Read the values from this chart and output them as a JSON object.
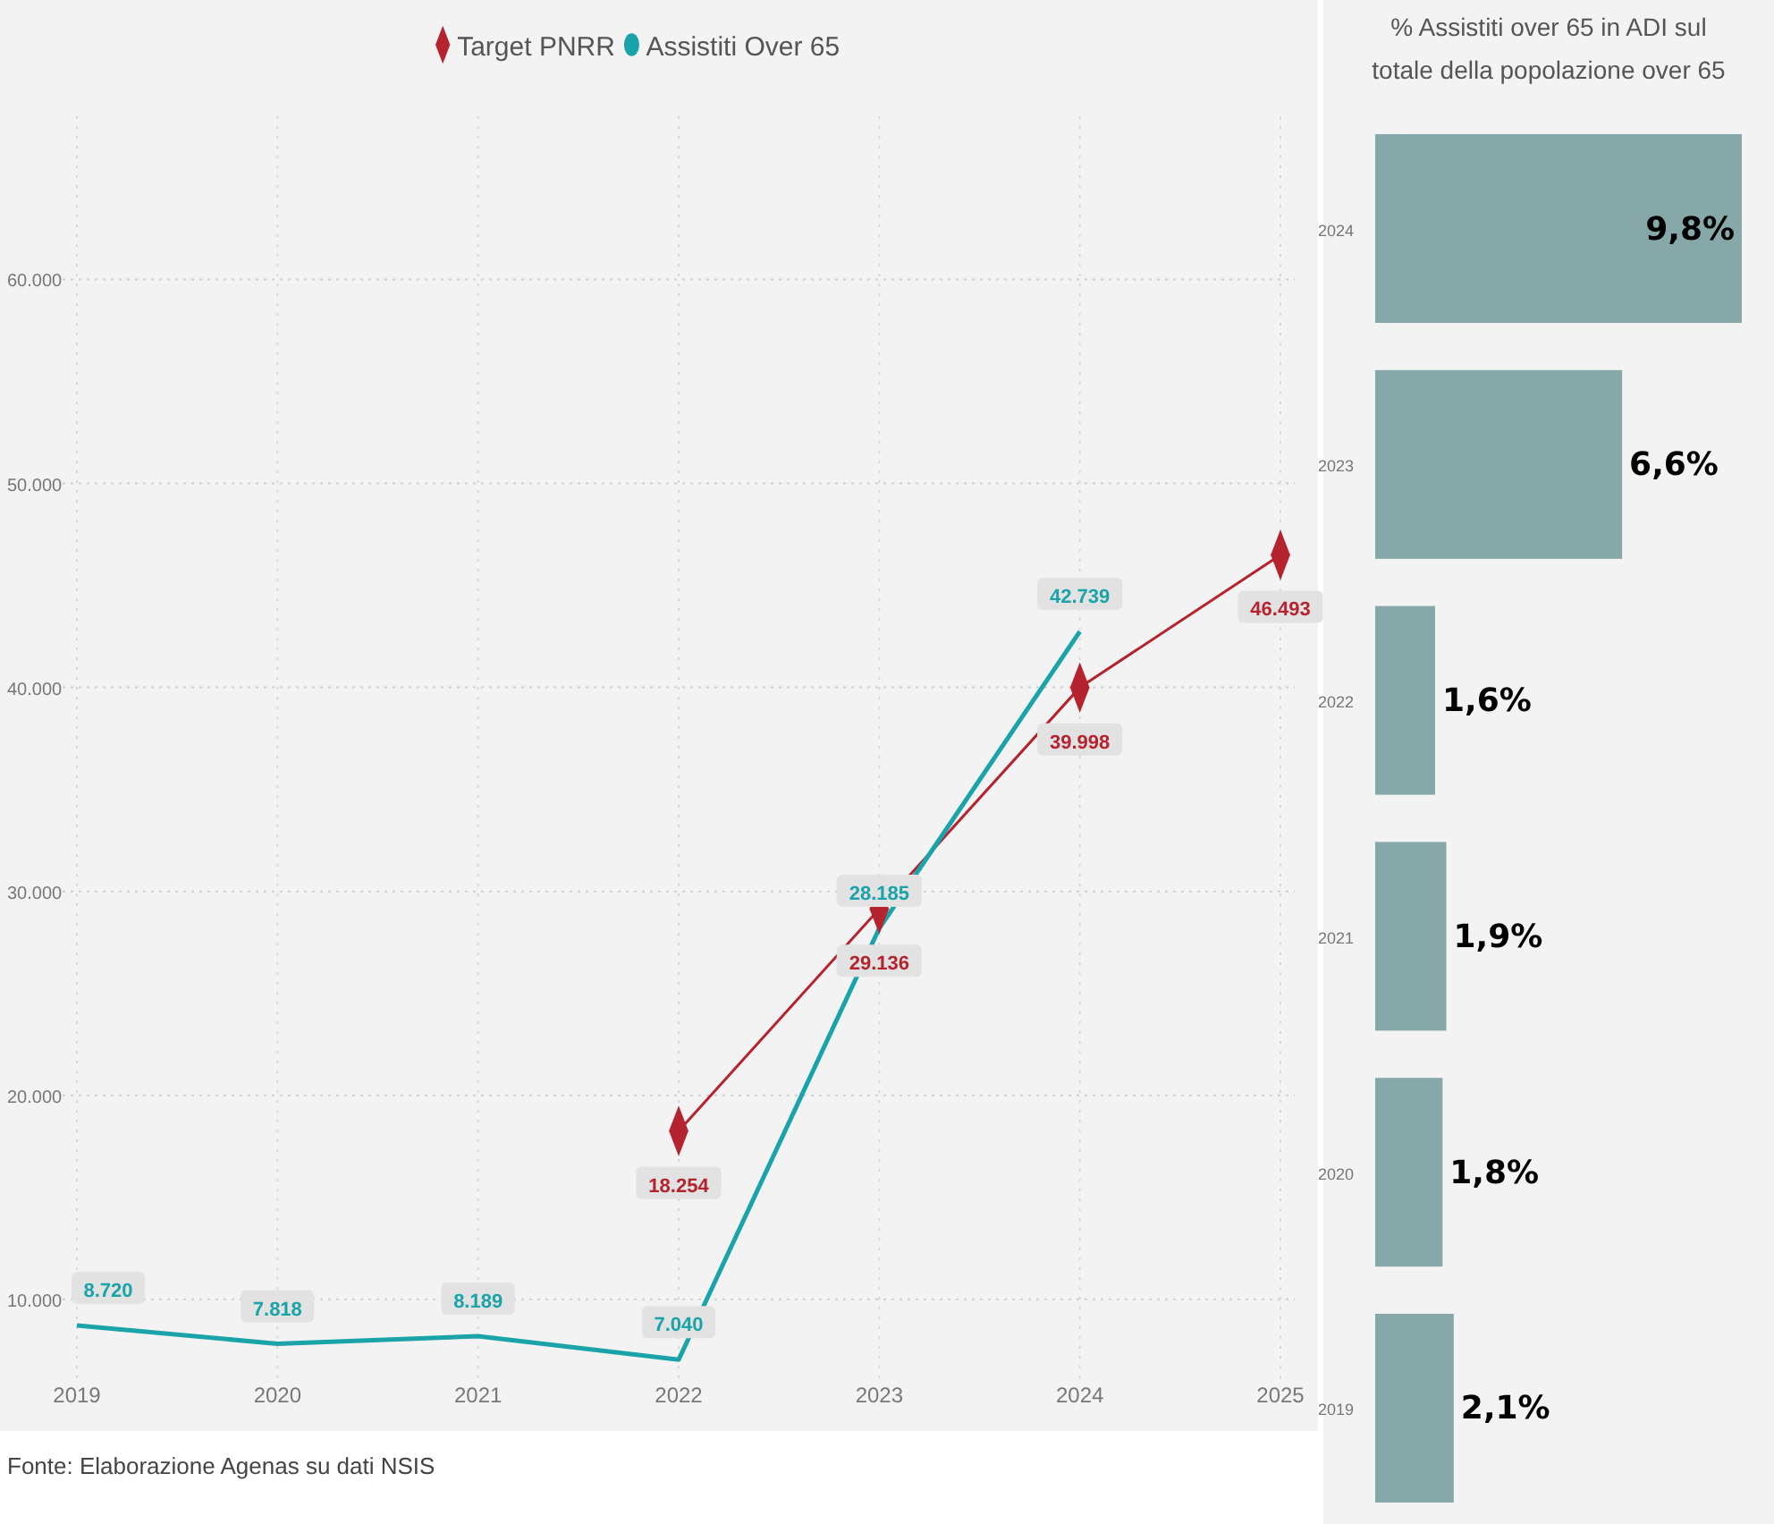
{
  "chart_data": [
    {
      "type": "line",
      "xlim": [
        2019,
        2025
      ],
      "xticks": [
        2019,
        2020,
        2021,
        2022,
        2023,
        2024,
        2025
      ],
      "ylim": [
        6000,
        68000
      ],
      "yticks": [
        {
          "value": 10000,
          "label": "10.000"
        },
        {
          "value": 20000,
          "label": "20.000"
        },
        {
          "value": 30000,
          "label": "30.000"
        },
        {
          "value": 40000,
          "label": "40.000"
        },
        {
          "value": 50000,
          "label": "50.000"
        },
        {
          "value": 60000,
          "label": "60.000"
        }
      ],
      "grid": true,
      "legend": "top",
      "series": [
        {
          "name": "Target PNRR",
          "color": "#b5232f",
          "x": [
            2022,
            2023,
            2024,
            2025
          ],
          "values": [
            18254,
            29136,
            39998,
            46493
          ],
          "value_labels": [
            "18.254",
            "29.136",
            "39.998",
            "46.493"
          ],
          "marker": "diamond"
        },
        {
          "name": "Assistiti Over 65",
          "color": "#1aa3a8",
          "x": [
            2019,
            2020,
            2021,
            2022,
            2023,
            2024
          ],
          "values": [
            8720,
            7818,
            8189,
            7040,
            28185,
            42739
          ],
          "value_labels": [
            "8.720",
            "7.818",
            "8.189",
            "7.040",
            "28.185",
            "42.739"
          ],
          "marker": "none"
        }
      ],
      "annotations": [
        "Fonte: Elaborazione Agenas su dati NSIS"
      ]
    },
    {
      "type": "bar",
      "orientation": "horizontal",
      "title": "% Assistiti over 65 in ADI sul totale della popolazione over 65",
      "categories": [
        "2024",
        "2023",
        "2022",
        "2021",
        "2020",
        "2019"
      ],
      "values": [
        9.8,
        6.6,
        1.6,
        1.9,
        1.8,
        2.1
      ],
      "value_labels": [
        "9,8%",
        "6,6%",
        "1,6%",
        "1,9%",
        "1,8%",
        "2,1%"
      ],
      "color": "#87a8a8"
    }
  ]
}
